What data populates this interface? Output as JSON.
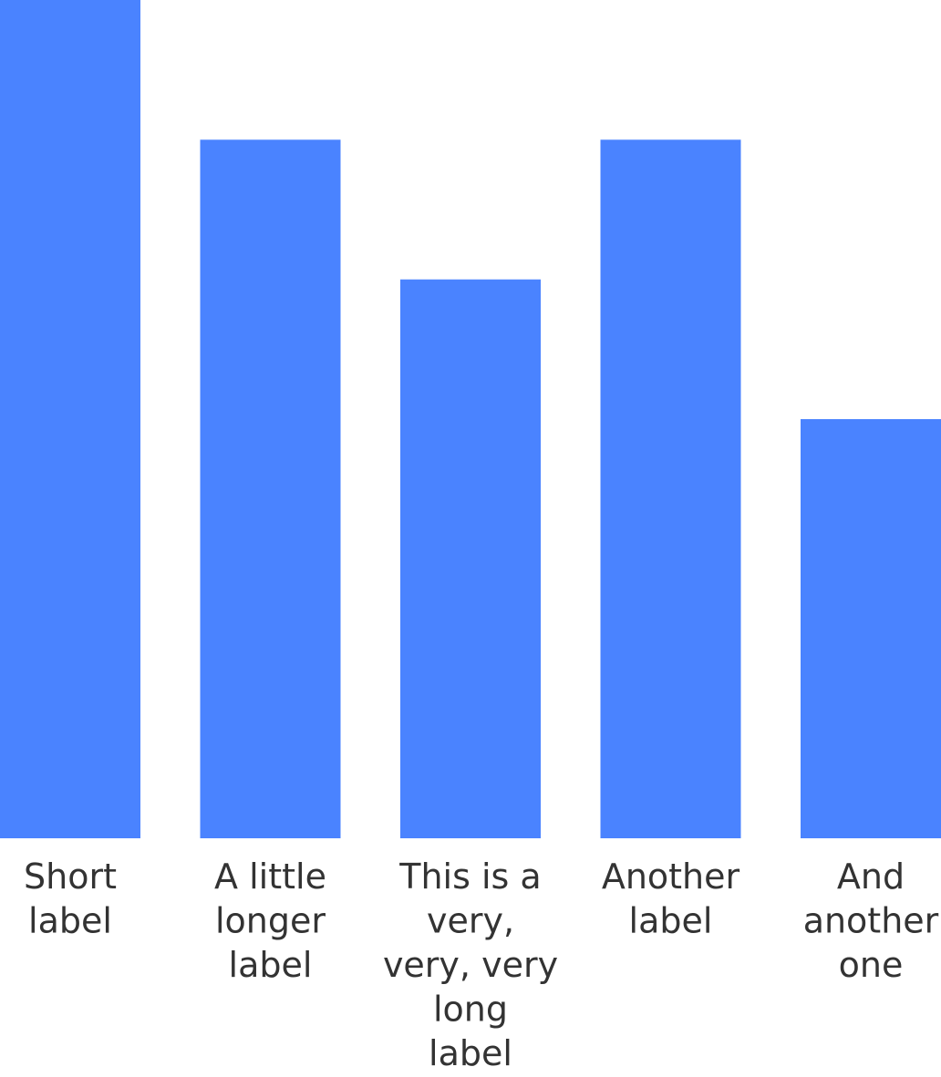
{
  "chart_data": {
    "type": "bar",
    "categories": [
      [
        "Short",
        "label"
      ],
      [
        "A little",
        "longer",
        "label"
      ],
      [
        "This is a",
        "very,",
        "very, very",
        "long",
        "label"
      ],
      [
        "Another",
        "label"
      ],
      [
        "And",
        "another",
        "one"
      ]
    ],
    "values": [
      6,
      5,
      4,
      5,
      3
    ],
    "ylim": [
      0,
      6
    ],
    "grid": false,
    "colors": {
      "bar": "#4a83ff",
      "label": "#333333",
      "background": "#ffffff"
    }
  }
}
